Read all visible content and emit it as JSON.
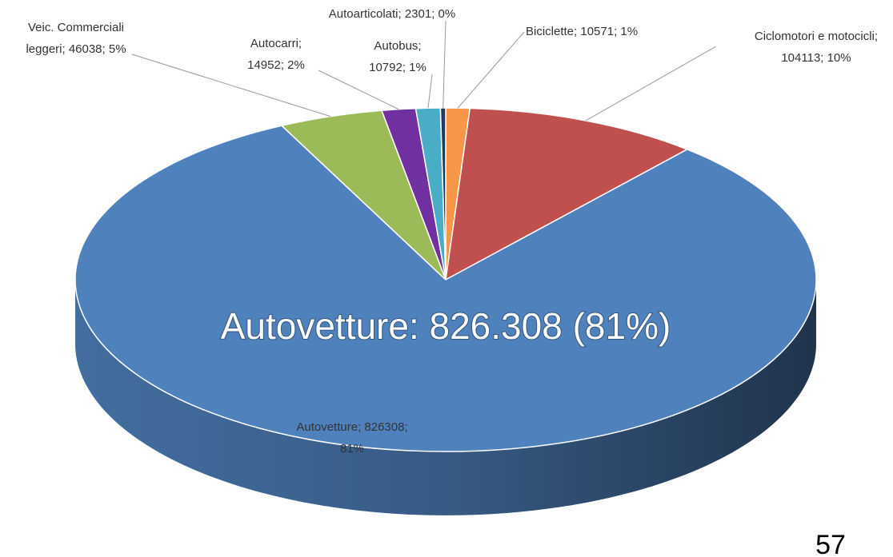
{
  "chart_data": {
    "type": "pie3d",
    "categories": [
      "Biciclette",
      "Ciclomotori e motocicli",
      "Autovetture",
      "Veic. Commerciali leggeri",
      "Autocarri",
      "Autobus",
      "Autoarticolati"
    ],
    "values": [
      10571,
      104113,
      826308,
      46038,
      14952,
      10792,
      2301
    ],
    "value_labels": [
      [
        "Biciclette; 10571; 1%"
      ],
      [
        "Ciclomotori e motocicli;",
        "104113; 10%"
      ],
      [
        "Autovetture; 826308;",
        "81%"
      ],
      [
        "Veic. Commerciali",
        "leggeri; 46038; 5%"
      ],
      [
        "Autocarri;",
        "14952; 2%"
      ],
      [
        "Autobus;",
        "10792; 1%"
      ],
      [
        "Autoarticolati; 2301; 0%"
      ]
    ],
    "colors": [
      "#f79646",
      "#c0504d",
      "#4f81bd",
      "#9bbb59",
      "#7030a0",
      "#4bacc6",
      "#1f3864"
    ],
    "annotation": "Autovetture: 826.308 (81%)",
    "page_number": "57"
  }
}
